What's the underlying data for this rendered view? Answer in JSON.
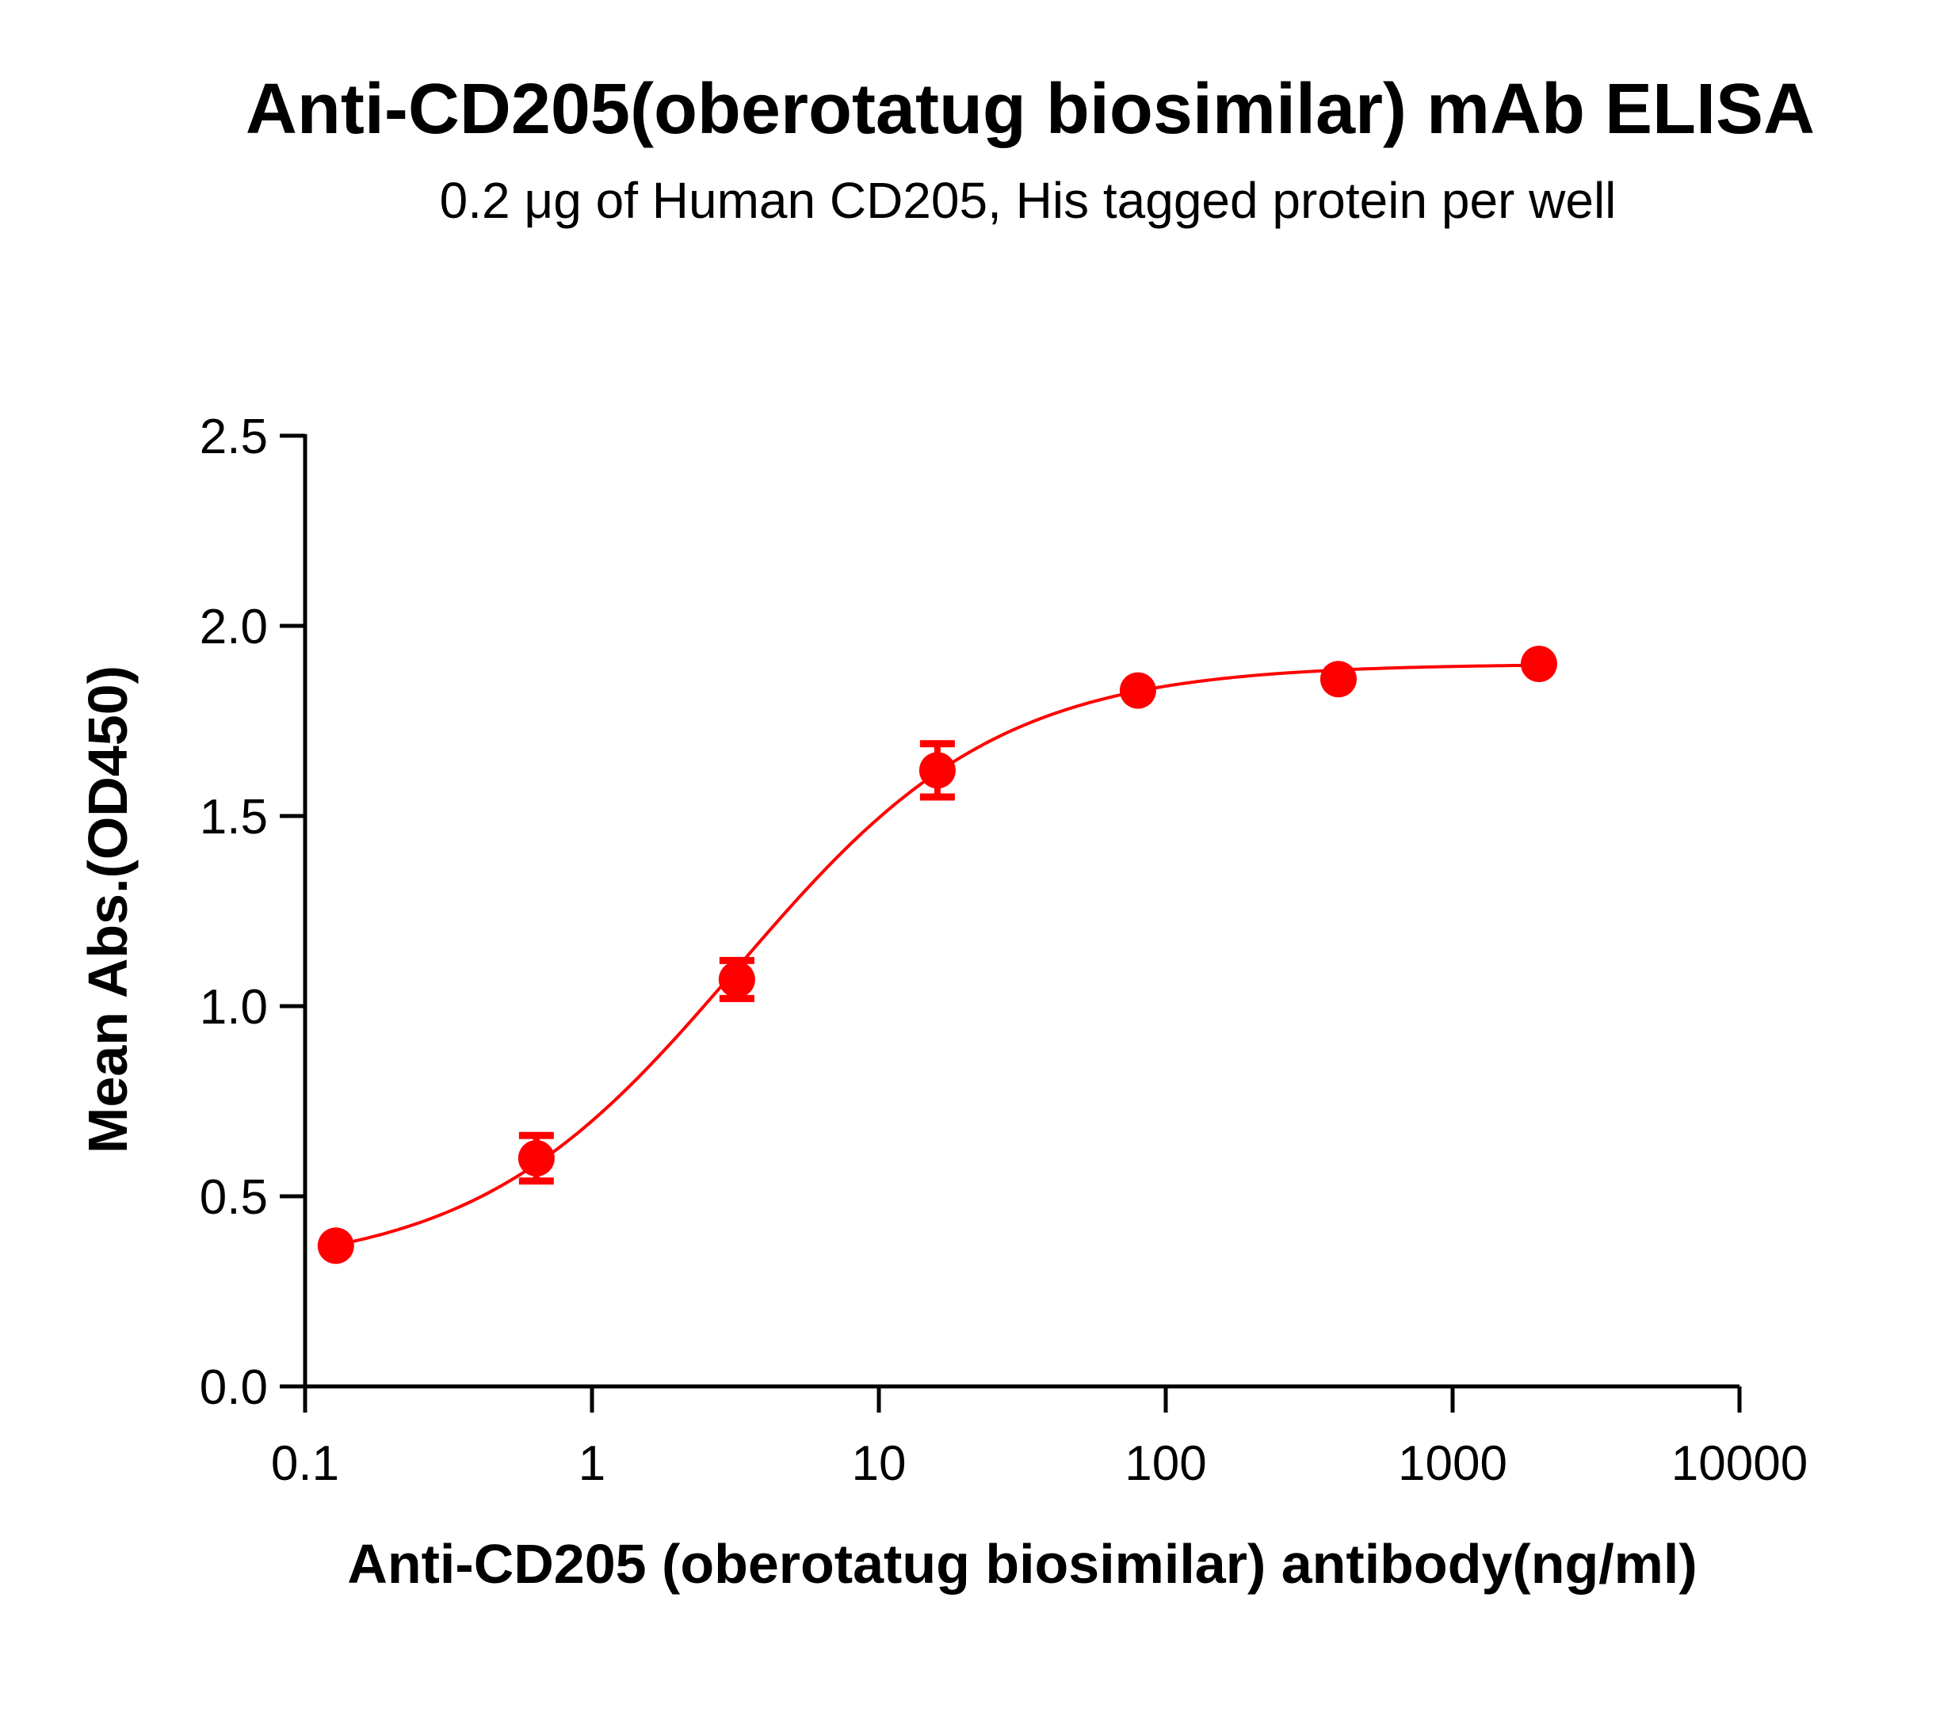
{
  "chart_data": {
    "type": "scatter",
    "title": "Anti-CD205(oberotatug biosimilar) mAb ELISA",
    "subtitle": "0.2 μg of Human CD205, His tagged protein per well",
    "xlabel": "Anti-CD205 (oberotatug biosimilar) antibody(ng/ml)",
    "ylabel": "Mean Abs.(OD450)",
    "x_scale": "log",
    "xlim": [
      0.1,
      10000
    ],
    "ylim": [
      0.0,
      2.5
    ],
    "x_ticks": [
      "0.1",
      "1",
      "10",
      "100",
      "1000",
      "10000"
    ],
    "y_ticks": [
      "0.0",
      "0.5",
      "1.0",
      "1.5",
      "2.0",
      "2.5"
    ],
    "grid": false,
    "color": "#ff0000",
    "series": [
      {
        "x": [
          0.128,
          0.64,
          3.2,
          16,
          80,
          400,
          2000
        ],
        "y": [
          0.37,
          0.6,
          1.07,
          1.62,
          1.83,
          1.86,
          1.9
        ],
        "error": [
          0.0,
          0.06,
          0.05,
          0.07,
          0.0,
          0.0,
          0.0
        ],
        "fit": "4PL"
      }
    ]
  }
}
